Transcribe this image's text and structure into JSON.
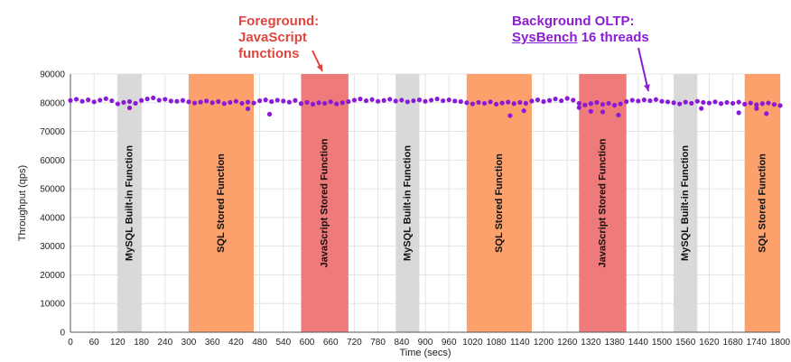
{
  "annotations": {
    "foreground_line1": "Foreground:",
    "foreground_line2": "JavaScript",
    "foreground_line3": "functions",
    "background_line1": "Background OLTP:",
    "background_line2_underlined": "SysBench",
    "background_line2_rest": " 16 threads"
  },
  "colors": {
    "series": "#8a1ad6",
    "mysql_builtin": "#d9d9d9",
    "sql_stored": "#fca06c",
    "js_stored": "#ee7a7a",
    "foreground_annotation": "#e0463f",
    "background_annotation": "#8b1fd1",
    "grid": "#e4e4e4"
  },
  "chart_data": {
    "type": "scatter",
    "xlabel": "Time (secs)",
    "ylabel": "Throughput (qps)",
    "xlim": [
      0,
      1800
    ],
    "ylim": [
      0,
      90000
    ],
    "x_ticks": [
      0,
      60,
      120,
      180,
      240,
      300,
      360,
      420,
      480,
      540,
      600,
      660,
      720,
      780,
      840,
      900,
      960,
      1020,
      1080,
      1140,
      1200,
      1260,
      1320,
      1380,
      1440,
      1500,
      1560,
      1620,
      1680,
      1740,
      1800
    ],
    "y_ticks": [
      0,
      10000,
      20000,
      30000,
      40000,
      50000,
      60000,
      70000,
      80000,
      90000
    ],
    "grid": true,
    "bands": [
      {
        "label": "MySQL Built-in Function",
        "x_start": 120,
        "x_end": 180,
        "kind": "mysql_builtin"
      },
      {
        "label": "SQL Stored Function",
        "x_start": 300,
        "x_end": 465,
        "kind": "sql_stored"
      },
      {
        "label": "JavaScript Stored Function",
        "x_start": 585,
        "x_end": 705,
        "kind": "js_stored"
      },
      {
        "label": "MySQL Built-in Function",
        "x_start": 825,
        "x_end": 885,
        "kind": "mysql_builtin"
      },
      {
        "label": "SQL Stored Function",
        "x_start": 1005,
        "x_end": 1170,
        "kind": "sql_stored"
      },
      {
        "label": "JavaScript Stored Function",
        "x_start": 1290,
        "x_end": 1410,
        "kind": "js_stored"
      },
      {
        "label": "MySQL Built-in Function",
        "x_start": 1530,
        "x_end": 1590,
        "kind": "mysql_builtin"
      },
      {
        "label": "SQL Stored Function",
        "x_start": 1710,
        "x_end": 1800,
        "kind": "sql_stored"
      }
    ],
    "series": [
      {
        "x": [
          0,
          15,
          30,
          45,
          60,
          75,
          90,
          105,
          120,
          135,
          150,
          165,
          180,
          195,
          210,
          225,
          240,
          255,
          270,
          285,
          300,
          315,
          330,
          345,
          360,
          375,
          390,
          405,
          420,
          435,
          450,
          465,
          480,
          495,
          510,
          525,
          540,
          555,
          570,
          585,
          600,
          615,
          630,
          645,
          660,
          675,
          690,
          705,
          720,
          735,
          750,
          765,
          780,
          795,
          810,
          825,
          840,
          855,
          870,
          885,
          900,
          915,
          930,
          945,
          960,
          975,
          990,
          1005,
          1020,
          1035,
          1050,
          1065,
          1080,
          1095,
          1110,
          1125,
          1140,
          1155,
          1170,
          1185,
          1200,
          1215,
          1230,
          1245,
          1260,
          1275,
          1290,
          1305,
          1320,
          1335,
          1350,
          1365,
          1380,
          1395,
          1410,
          1425,
          1440,
          1455,
          1470,
          1485,
          1500,
          1515,
          1530,
          1545,
          1560,
          1575,
          1590,
          1605,
          1620,
          1635,
          1650,
          1665,
          1680,
          1695,
          1710,
          1725,
          1740,
          1755,
          1770,
          1785,
          1800
        ],
        "values": [
          80800,
          81200,
          80500,
          81000,
          80300,
          80900,
          81400,
          80700,
          79600,
          80100,
          80400,
          79800,
          80800,
          81300,
          81700,
          80900,
          81200,
          80600,
          80500,
          80800,
          80300,
          79900,
          80200,
          80600,
          80000,
          80400,
          79700,
          80100,
          80500,
          79800,
          80200,
          79900,
          80700,
          81000,
          80400,
          80900,
          80600,
          80200,
          80800,
          79700,
          80100,
          79500,
          80000,
          79800,
          80300,
          79600,
          80000,
          80400,
          80900,
          81300,
          80700,
          81100,
          80500,
          80800,
          81200,
          80600,
          80900,
          80300,
          80700,
          81000,
          80500,
          80900,
          81300,
          80700,
          81000,
          80600,
          80400,
          80000,
          79600,
          80100,
          79800,
          80300,
          79500,
          79900,
          80200,
          79700,
          80100,
          79800,
          80600,
          81000,
          80400,
          80800,
          81300,
          80700,
          81500,
          80900,
          79800,
          79200,
          79700,
          80100,
          79400,
          79800,
          79100,
          79600,
          80400,
          80900,
          80600,
          81000,
          80700,
          81100,
          80500,
          80300,
          80000,
          79600,
          80200,
          79800,
          80500,
          80100,
          79900,
          80300,
          79700,
          80100,
          79800,
          80200,
          79500,
          79900,
          79300,
          79700,
          79900,
          79400,
          79000
        ]
      },
      {
        "x": [
          150,
          450,
          505,
          1115,
          1150,
          1290,
          1320,
          1350,
          1390,
          1600,
          1695,
          1740,
          1765
        ],
        "values": [
          78200,
          77900,
          76000,
          75500,
          77200,
          78300,
          77000,
          76800,
          75700,
          78000,
          76500,
          78000,
          76200
        ]
      }
    ]
  }
}
